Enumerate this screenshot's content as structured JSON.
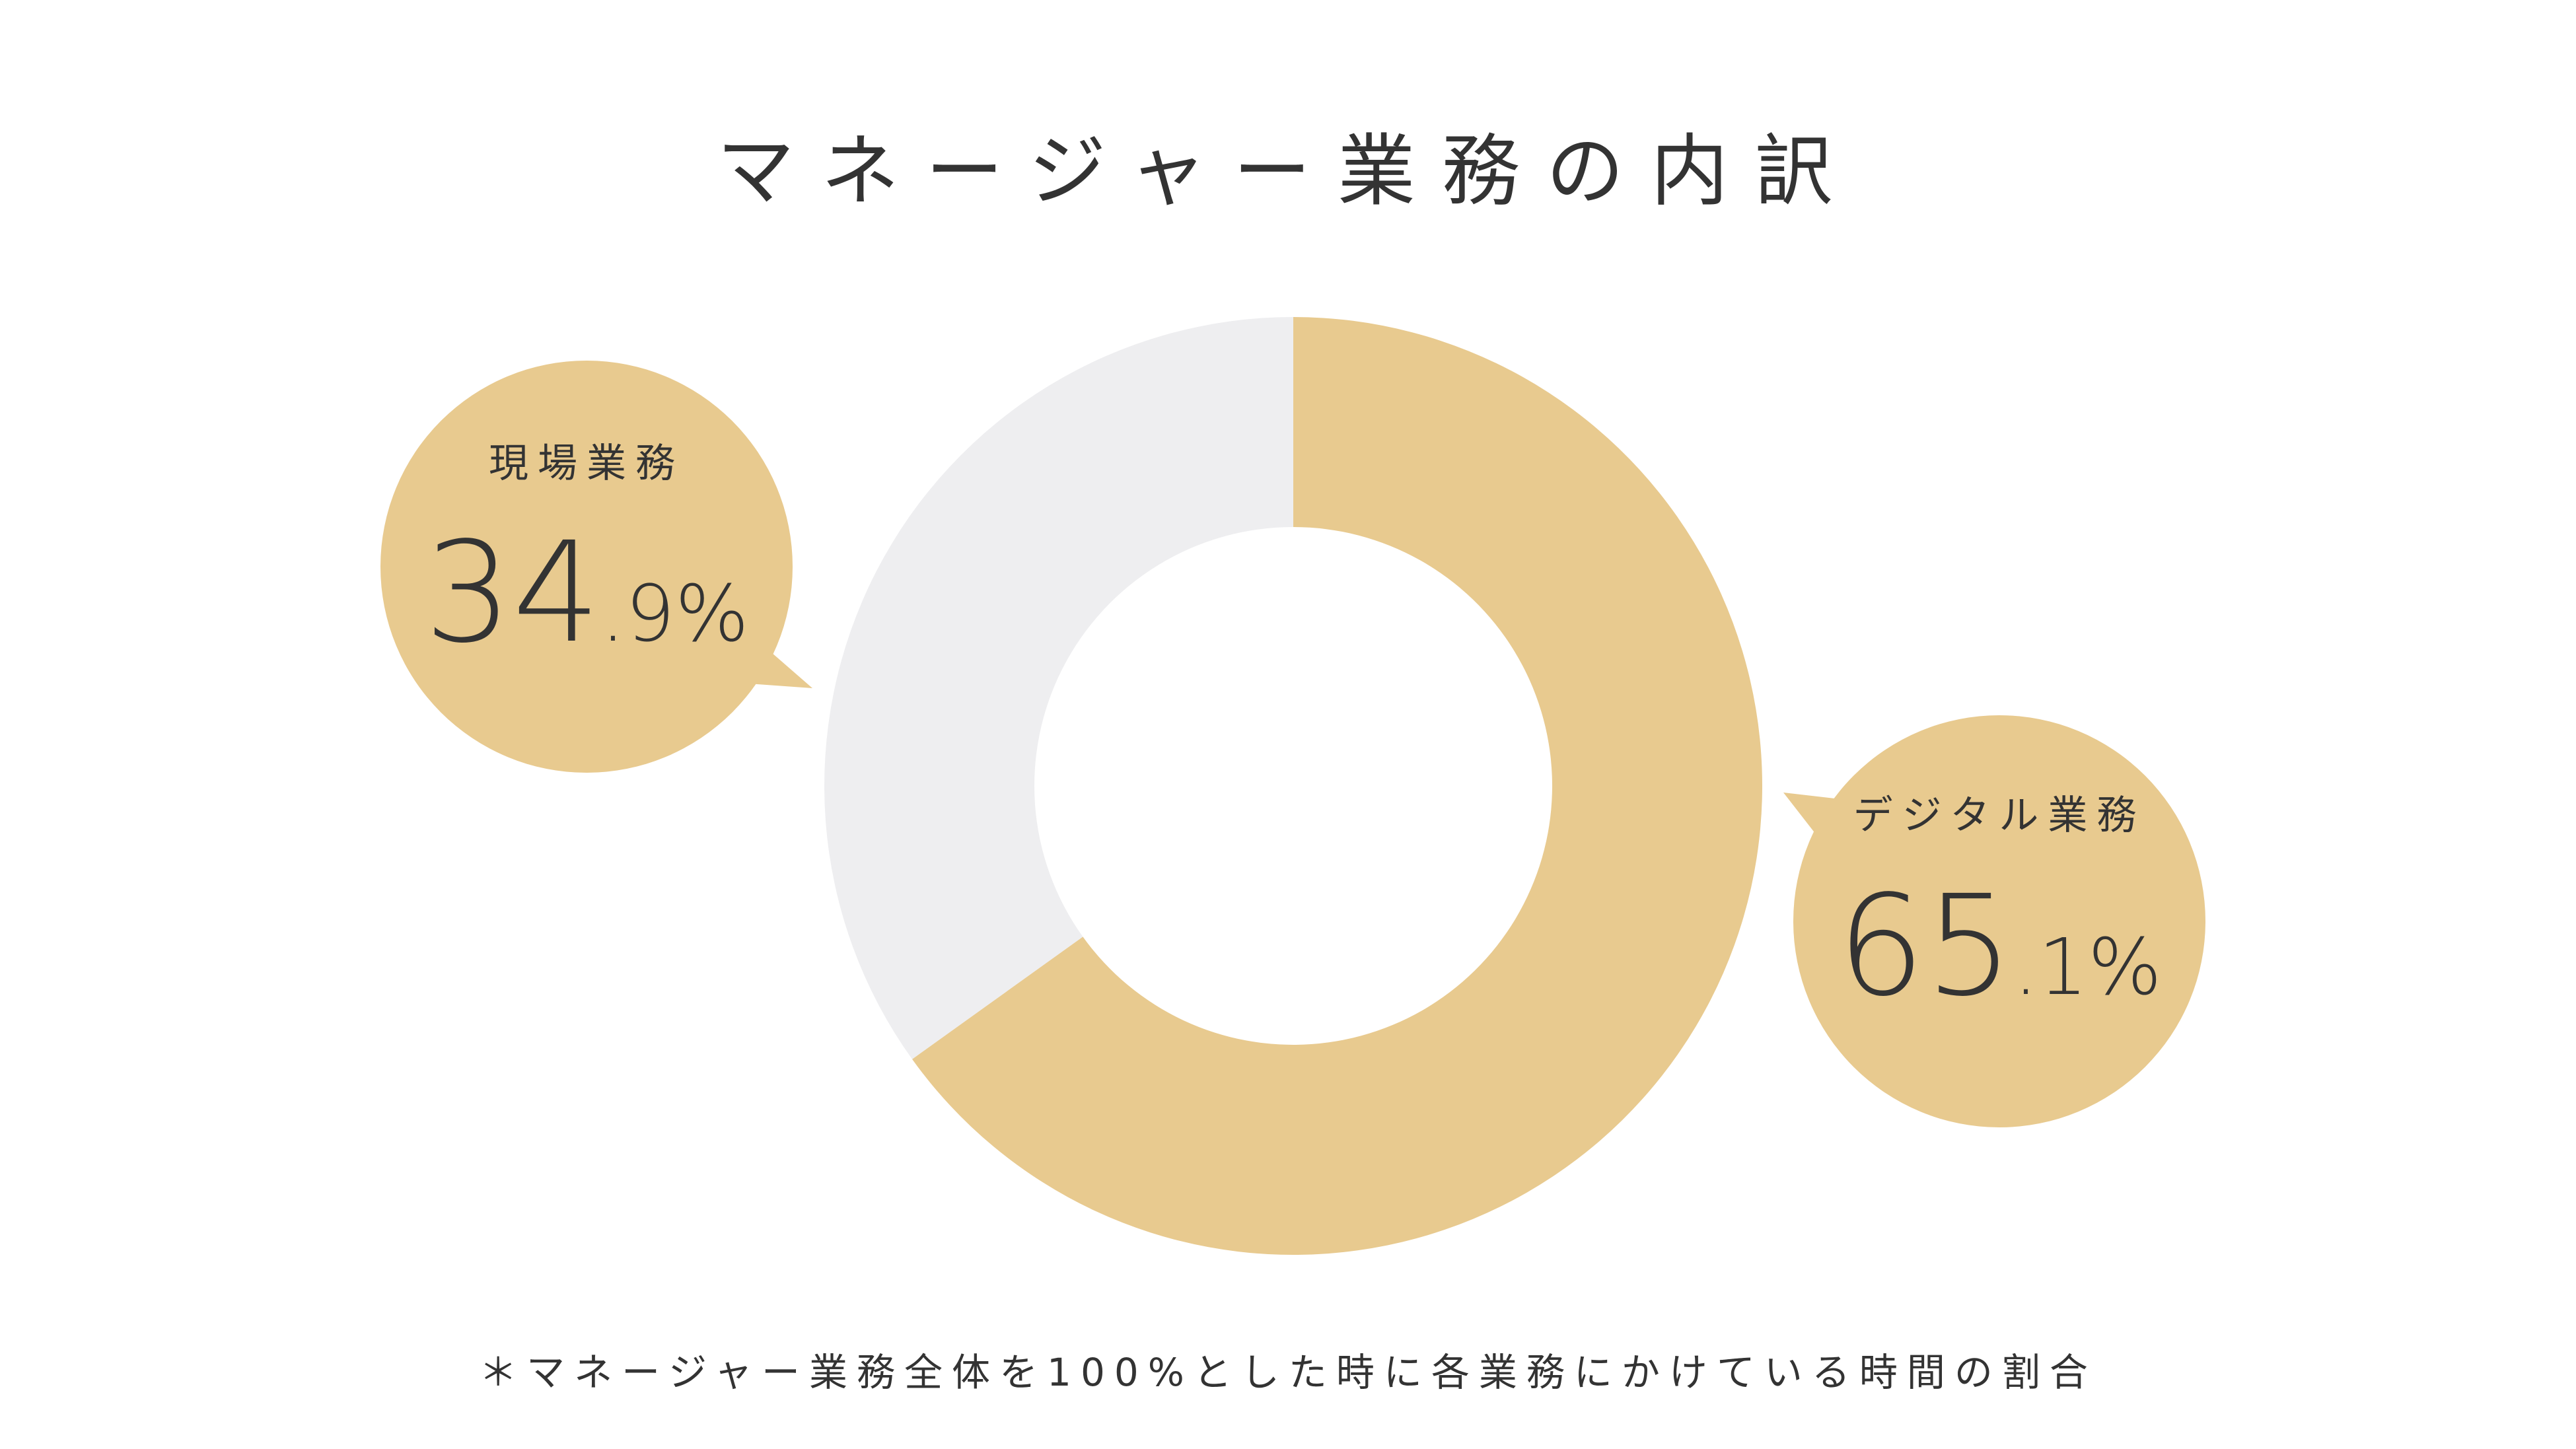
{
  "chart_data": {
    "type": "pie",
    "title": "マネージャー業務の内訳",
    "categories": [
      "現場業務",
      "デジタル業務"
    ],
    "values": [
      34.9,
      65.1
    ],
    "value_labels": [
      {
        "integer": "34",
        "decimal": ".9%"
      },
      {
        "integer": "65",
        "decimal": ".1%"
      }
    ],
    "colors": [
      "#eeeef0",
      "#e8ca8f"
    ],
    "donut": true,
    "footnote": "＊マネージャー業務全体を100%とした時に各業務にかけている時間の割合"
  },
  "colors": {
    "accent": "#e8ca8f",
    "muted": "#eeeef0",
    "text": "#333333",
    "background": "#ffffff"
  }
}
